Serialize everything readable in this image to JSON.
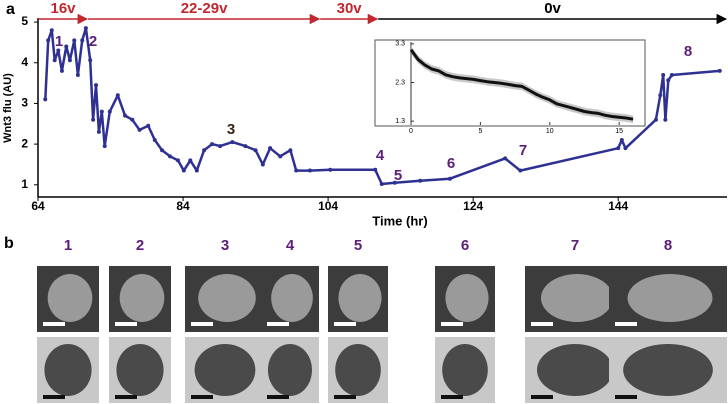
{
  "panel_labels": [
    "a",
    "b"
  ],
  "chart_data": [
    {
      "type": "line",
      "xlabel": "Time (hr)",
      "ylabel": "Wnt3 flu (AU)",
      "xlim": [
        64,
        159
      ],
      "ylim": [
        0.7,
        5.1
      ],
      "xticks": [
        64,
        84,
        104,
        124,
        144
      ],
      "yticks": [
        1,
        2,
        3,
        4,
        5
      ],
      "series": [
        {
          "color": "#2e3192",
          "x": [
            65,
            65.4,
            65.9,
            66.3,
            66.8,
            67.3,
            67.9,
            68.4,
            69,
            69.5,
            70.1,
            70.6,
            71.2,
            71.6,
            72,
            72.4,
            72.8,
            73.2,
            73.9,
            75,
            76,
            77,
            78,
            79.2,
            80.1,
            81.1,
            82.2,
            83.3,
            84.1,
            85,
            85.9,
            86.9,
            88,
            89.1,
            90.8,
            92.6,
            94,
            95,
            96,
            97.4,
            98.8,
            99.6,
            101.5,
            104.3,
            110.5,
            111.4,
            113.2,
            116.7,
            120.8,
            128.4,
            130.5,
            144,
            144.5,
            145,
            149.2,
            149.8,
            150.2,
            150.5,
            150.9,
            151.4,
            158
          ],
          "y": [
            3.1,
            4.55,
            4.8,
            4.06,
            4.3,
            3.8,
            4.4,
            4.06,
            4.55,
            3.7,
            4.55,
            4.85,
            4.06,
            2.6,
            3.45,
            2.3,
            2.8,
            1.95,
            2.8,
            3.2,
            2.7,
            2.6,
            2.35,
            2.45,
            2.1,
            1.85,
            1.7,
            1.6,
            1.35,
            1.6,
            1.35,
            1.85,
            2.0,
            1.95,
            2.05,
            1.95,
            1.85,
            1.5,
            1.9,
            1.7,
            1.85,
            1.35,
            1.35,
            1.37,
            1.37,
            1.02,
            1.05,
            1.1,
            1.15,
            1.65,
            1.35,
            1.9,
            2.1,
            1.9,
            2.6,
            3.2,
            3.7,
            2.6,
            3.57,
            3.7,
            3.8
          ]
        }
      ],
      "point_labels": [
        "1",
        "2",
        "3",
        "4",
        "5",
        "6",
        "7",
        "8"
      ],
      "phases": {
        "labels": [
          "16v",
          "22-29v",
          "30v",
          "0v"
        ],
        "edges": [
          64,
          70.9,
          102.9,
          110.9,
          159
        ],
        "colors": [
          "#c1272d",
          "#c1272d",
          "#c1272d",
          "#000000"
        ]
      }
    },
    {
      "type": "line",
      "xlim": [
        0,
        16.5
      ],
      "ylim": [
        1.2,
        3.4
      ],
      "xticks": [
        0,
        5,
        10,
        15
      ],
      "yticks": [
        1.3,
        2.3,
        3.3
      ],
      "series": [
        {
          "color": "#111111",
          "error": 0.1,
          "x": [
            0,
            0.5,
            1,
            1.5,
            2,
            2.5,
            3,
            3.5,
            4,
            4.5,
            5,
            5.5,
            6,
            6.5,
            7,
            7.5,
            8,
            8.5,
            9,
            9.5,
            10,
            10.5,
            11,
            11.5,
            12,
            12.5,
            13,
            13.5,
            14,
            14.5,
            15,
            15.5,
            16
          ],
          "y": [
            3.15,
            2.9,
            2.75,
            2.65,
            2.6,
            2.5,
            2.45,
            2.42,
            2.4,
            2.38,
            2.35,
            2.32,
            2.3,
            2.28,
            2.25,
            2.22,
            2.2,
            2.1,
            2.0,
            1.92,
            1.85,
            1.75,
            1.7,
            1.65,
            1.6,
            1.55,
            1.52,
            1.5,
            1.45,
            1.42,
            1.4,
            1.38,
            1.35
          ]
        }
      ]
    }
  ],
  "panel_b": {
    "labels": [
      "1",
      "2",
      "3",
      "4",
      "5",
      "6",
      "7",
      "8"
    ]
  }
}
